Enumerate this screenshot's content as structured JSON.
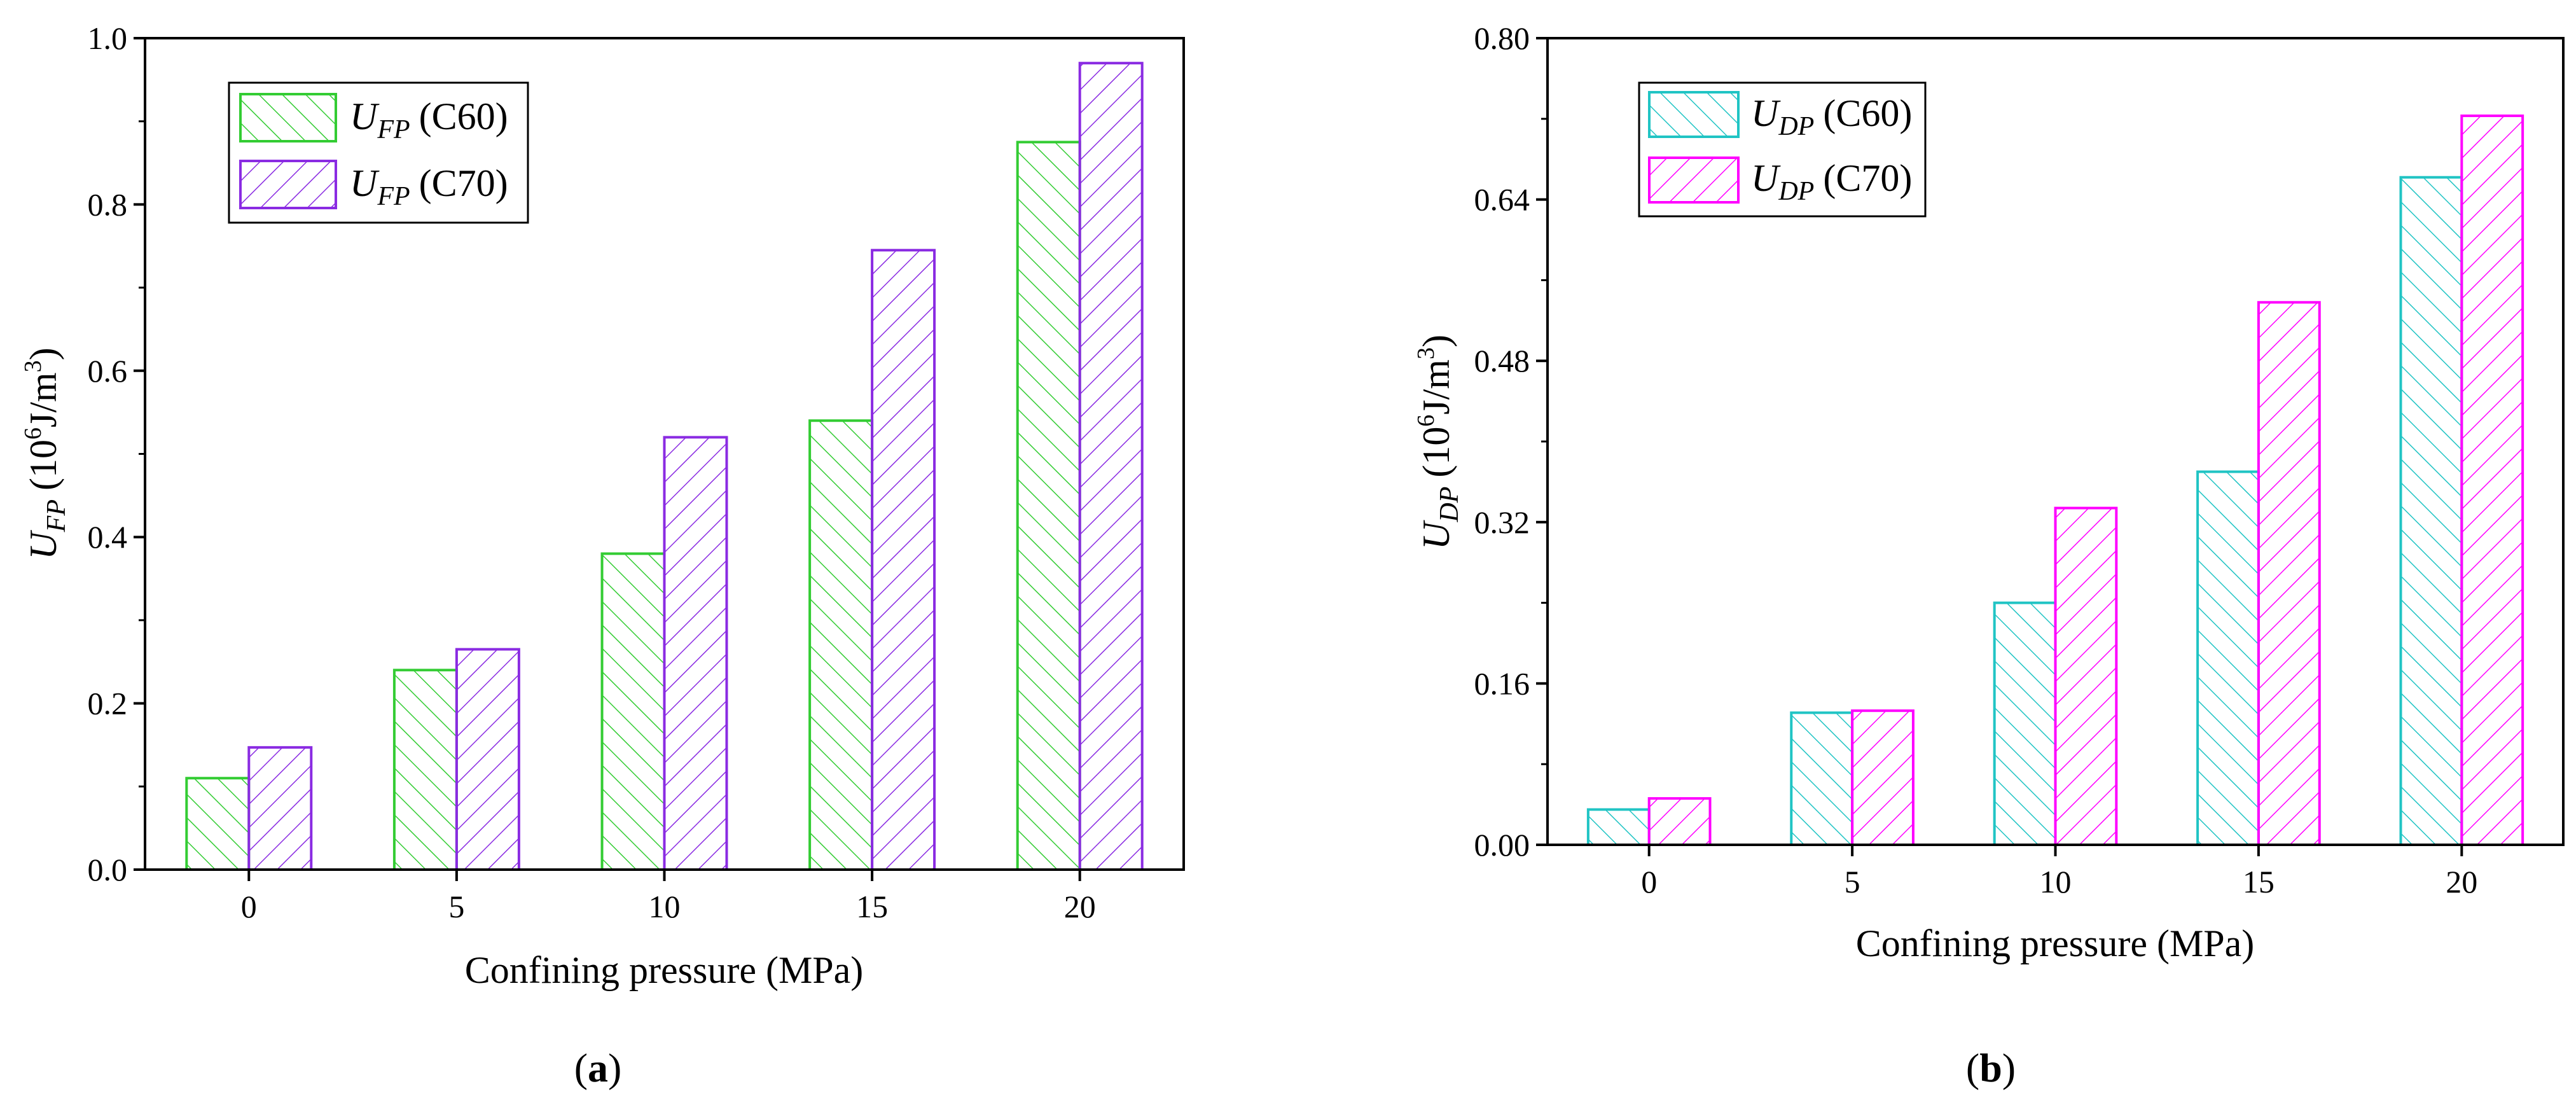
{
  "colors": {
    "c60_a": "#33cc33",
    "c70_a": "#8a2be2",
    "c60_b": "#20c4c4",
    "c70_b": "#ff00ff",
    "axis": "#000000"
  },
  "panels": {
    "a": {
      "caption": "a",
      "ylabel_symbol": "U",
      "ylabel_sub": "FP",
      "ylabel_unit_pre": "(10",
      "ylabel_unit_exp6": "6",
      "ylabel_unit_mid": "J/m",
      "ylabel_unit_exp3": "3",
      "ylabel_unit_post": ")",
      "legend": [
        {
          "symbol": "U",
          "sub": "FP",
          "suffix": "(C60)"
        },
        {
          "symbol": "U",
          "sub": "FP",
          "suffix": "(C70)"
        }
      ]
    },
    "b": {
      "caption": "b",
      "ylabel_symbol": "U",
      "ylabel_sub": "DP",
      "ylabel_unit_pre": "(10",
      "ylabel_unit_exp6": "6",
      "ylabel_unit_mid": "J/m",
      "ylabel_unit_exp3": "3",
      "ylabel_unit_post": ")",
      "legend": [
        {
          "symbol": "U",
          "sub": "DP",
          "suffix": "(C60)"
        },
        {
          "symbol": "U",
          "sub": "DP",
          "suffix": "(C70)"
        }
      ]
    }
  },
  "chart_data": [
    {
      "type": "bar",
      "title": "(a)",
      "xlabel": "Confining pressure (MPa)",
      "ylabel": "U_FP (10^6 J/m^3)",
      "categories": [
        "0",
        "5",
        "10",
        "15",
        "20"
      ],
      "ylim": [
        0,
        1.0
      ],
      "yticks": [
        0.0,
        0.2,
        0.4,
        0.6,
        0.8,
        1.0
      ],
      "ytick_labels": [
        "0.0",
        "0.2",
        "0.4",
        "0.6",
        "0.8",
        "1.0"
      ],
      "legend_position": "top-left",
      "series": [
        {
          "name": "U_FP (C60)",
          "values": [
            0.11,
            0.24,
            0.38,
            0.54,
            0.875
          ]
        },
        {
          "name": "U_FP (C70)",
          "values": [
            0.147,
            0.265,
            0.52,
            0.745,
            0.97
          ]
        }
      ]
    },
    {
      "type": "bar",
      "title": "(b)",
      "xlabel": "Confining pressure (MPa)",
      "ylabel": "U_DP (10^6 J/m^3)",
      "categories": [
        "0",
        "5",
        "10",
        "15",
        "20"
      ],
      "ylim": [
        0,
        0.8
      ],
      "yticks": [
        0.0,
        0.16,
        0.32,
        0.48,
        0.64,
        0.8
      ],
      "ytick_labels": [
        "0.00",
        "0.16",
        "0.32",
        "0.48",
        "0.64",
        "0.80"
      ],
      "legend_position": "top-left",
      "series": [
        {
          "name": "U_DP (C60)",
          "values": [
            0.035,
            0.131,
            0.24,
            0.37,
            0.662
          ]
        },
        {
          "name": "U_DP (C70)",
          "values": [
            0.046,
            0.133,
            0.334,
            0.538,
            0.723
          ]
        }
      ]
    }
  ]
}
